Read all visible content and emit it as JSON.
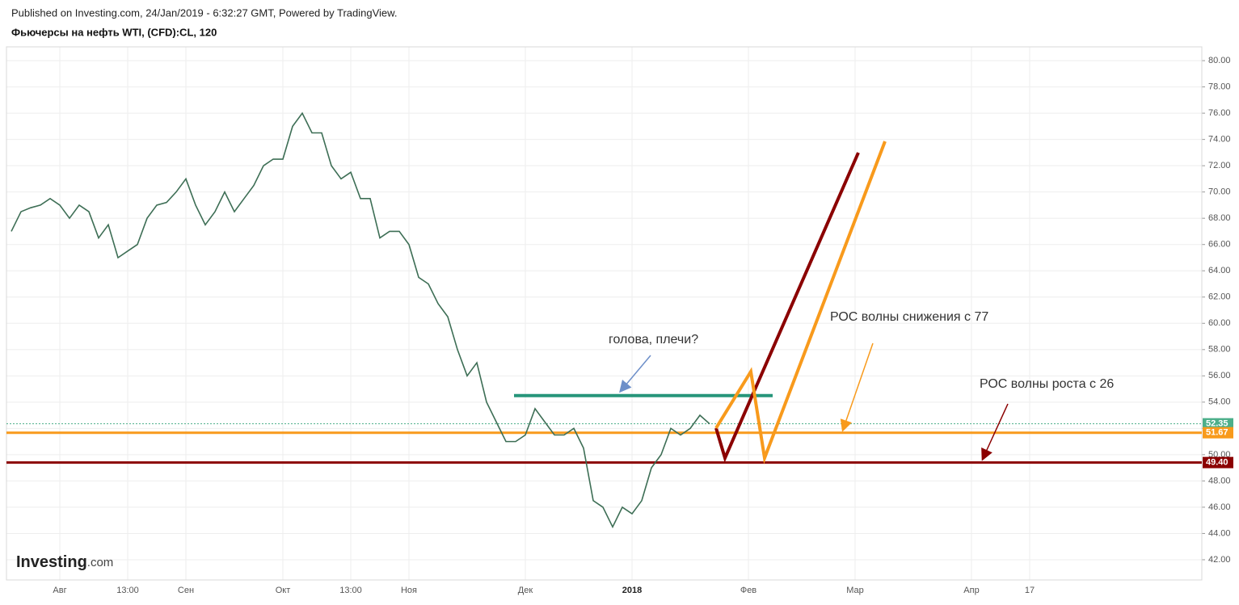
{
  "chart_data": {
    "type": "line",
    "header": "Published on Investing.com, 24/Jan/2019 - 6:32:27 GMT, Powered by TradingView.",
    "title": "Фьючерсы на нефть WTI, (CFD):CL, 120",
    "logo": {
      "brand": "Investing",
      "suffix": ".com"
    },
    "categories": [
      null,
      null,
      null,
      null,
      null,
      "Авг",
      null,
      null,
      null,
      null,
      null,
      null,
      "13:00",
      null,
      null,
      null,
      null,
      null,
      "Сен",
      null,
      null,
      null,
      null,
      null,
      null,
      null,
      null,
      null,
      "Окт",
      null,
      null,
      null,
      null,
      null,
      null,
      "13:00",
      null,
      null,
      null,
      null,
      null,
      "Ноя",
      null,
      null,
      null,
      null,
      null,
      null,
      null,
      null,
      null,
      null,
      null,
      "Дек",
      null,
      null,
      null,
      null,
      null,
      null,
      null,
      null,
      null,
      null,
      "2018",
      null,
      null,
      null,
      null,
      null,
      null,
      null,
      null,
      null,
      null,
      null,
      "Фев",
      null,
      null,
      null,
      null,
      null,
      null,
      null,
      null,
      null,
      null,
      "Мар",
      null,
      null,
      null,
      null,
      null,
      null,
      null,
      null,
      null,
      null,
      null,
      "Апр",
      null,
      null,
      null,
      null,
      null,
      "17",
      null,
      null,
      null,
      null,
      null,
      null,
      null,
      null,
      null,
      null,
      null,
      null,
      null,
      null,
      null,
      null,
      null
    ],
    "series": [
      {
        "color": "#3d6e55",
        "values": [
          67,
          68.5,
          68.8,
          69,
          69.5,
          69,
          68,
          69,
          68.5,
          66.5,
          67.5,
          65,
          65.5,
          66,
          68,
          69,
          69.2,
          70,
          71,
          69,
          67.5,
          68.5,
          70,
          68.5,
          69.5,
          70.5,
          72,
          72.5,
          72.5,
          75,
          76,
          74.5,
          74.5,
          72,
          71,
          71.5,
          69.5,
          69.5,
          66.5,
          67,
          67,
          66,
          63.5,
          63,
          61.5,
          60.5,
          58,
          56,
          57,
          54,
          52.5,
          51,
          51,
          51.5,
          53.5,
          52.5,
          51.5,
          51.5,
          52,
          50.5,
          46.5,
          46,
          44.5,
          46,
          45.5,
          46.5,
          49,
          50,
          52,
          51.5,
          52,
          53,
          52.35,
          null,
          null,
          null,
          null,
          null,
          null,
          null,
          null,
          null,
          null,
          null,
          null,
          null,
          null,
          null,
          null,
          null,
          null,
          null,
          null,
          null,
          null,
          null,
          null,
          null,
          null,
          null,
          null,
          null,
          null,
          null,
          null,
          null,
          null,
          null,
          null,
          null,
          null,
          null,
          null,
          null,
          null,
          null,
          null,
          null,
          null,
          null,
          null,
          null,
          null
        ]
      }
    ],
    "ylim": [
      40.46,
      81.05
    ],
    "yticks": [
      {
        "value": 42,
        "label": "42.00"
      },
      {
        "value": 44,
        "label": "44.00"
      },
      {
        "value": 46,
        "label": "46.00"
      },
      {
        "value": 48,
        "label": "48.00"
      },
      {
        "value": 50,
        "label": "50.00"
      },
      {
        "value": 52,
        "label": "52.00"
      },
      {
        "value": 54,
        "label": "54.00"
      },
      {
        "value": 56,
        "label": "56.00"
      },
      {
        "value": 58,
        "label": "58.00"
      },
      {
        "value": 60,
        "label": "60.00"
      },
      {
        "value": 62,
        "label": "62.00"
      },
      {
        "value": 64,
        "label": "64.00"
      },
      {
        "value": 66,
        "label": "66.00"
      },
      {
        "value": 68,
        "label": "68.00"
      },
      {
        "value": 70,
        "label": "70.00"
      },
      {
        "value": 72,
        "label": "72.00"
      },
      {
        "value": 74,
        "label": "74.00"
      },
      {
        "value": 76,
        "label": "76.00"
      },
      {
        "value": 78,
        "label": "78.00"
      },
      {
        "value": 80,
        "label": "80.00"
      }
    ],
    "grid": true,
    "levels": [
      {
        "value": 52.35,
        "color": "#4caf8a",
        "style": "dotted"
      },
      {
        "value": 51.67,
        "color": "#f89a1c",
        "style": "solid"
      },
      {
        "value": {
          "value": 49.4,
          "label": "49.40"
        },
        "color": "#8b0000",
        "style": "solid"
      }
    ],
    "neckline": {
      "value": 54.5,
      "color": "#26957a"
    },
    "annotations": [
      "голова, плечи?",
      "РОС волны снижения с 77",
      "РОС волны роста с 26"
    ]
  }
}
